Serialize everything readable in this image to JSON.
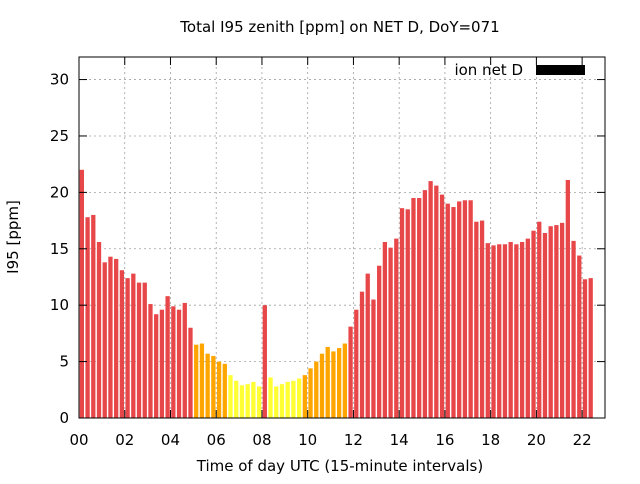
{
  "chart_data": {
    "type": "bar",
    "title": "Total I95 zenith [ppm] on NET D, DoY=071",
    "xlabel": "Time of day UTC (15-minute intervals)",
    "ylabel": "I95 [ppm]",
    "xlim": [
      0,
      23
    ],
    "ylim": [
      0,
      32
    ],
    "grid": true,
    "legend": {
      "position": "top-right",
      "entries": [
        {
          "name": "ion net D",
          "color": "#000000"
        }
      ]
    },
    "x_ticks": [
      {
        "value": 0,
        "label": "00"
      },
      {
        "value": 2,
        "label": "02"
      },
      {
        "value": 4,
        "label": "04"
      },
      {
        "value": 6,
        "label": "06"
      },
      {
        "value": 8,
        "label": "08"
      },
      {
        "value": 10,
        "label": "10"
      },
      {
        "value": 12,
        "label": "12"
      },
      {
        "value": 14,
        "label": "14"
      },
      {
        "value": 16,
        "label": "16"
      },
      {
        "value": 18,
        "label": "18"
      },
      {
        "value": 20,
        "label": "20"
      },
      {
        "value": 22,
        "label": "22"
      }
    ],
    "y_ticks": [
      {
        "value": 0,
        "label": "0"
      },
      {
        "value": 5,
        "label": "5"
      },
      {
        "value": 10,
        "label": "10"
      },
      {
        "value": 15,
        "label": "15"
      },
      {
        "value": 20,
        "label": "20"
      },
      {
        "value": 25,
        "label": "25"
      },
      {
        "value": 30,
        "label": "30"
      }
    ],
    "bar_interval_hours": 0.25,
    "colors": {
      "high": "#e8474a",
      "medium": "#ffa500",
      "low": "#ffff33"
    },
    "series": [
      {
        "values": [
          22.0,
          17.8,
          18.0,
          15.6,
          13.8,
          14.3,
          14.1,
          13.1,
          12.4,
          12.8,
          12.0,
          12.0,
          10.1,
          9.2,
          9.6,
          10.8,
          9.9,
          9.6,
          10.2,
          8.0,
          6.5,
          6.6,
          5.7,
          5.5,
          5.0,
          4.8,
          3.8,
          3.3,
          2.9,
          3.0,
          3.2,
          2.8,
          10.0,
          3.6,
          2.8,
          3.0,
          3.2,
          3.3,
          3.5,
          3.8,
          4.4,
          5.0,
          5.7,
          6.3,
          5.9,
          6.2,
          6.6,
          8.1,
          9.6,
          11.2,
          12.8,
          10.5,
          13.5,
          15.6,
          15.1,
          15.9,
          18.6,
          18.5,
          19.5,
          19.5,
          20.2,
          21.0,
          20.6,
          19.8,
          19.0,
          18.7,
          19.2,
          19.3,
          19.3,
          17.4,
          17.5,
          15.5,
          15.3,
          15.4,
          15.4,
          15.6,
          15.4,
          15.6,
          15.9,
          16.6,
          17.4,
          16.4,
          17.0,
          17.1,
          17.3,
          21.1,
          15.7,
          14.4,
          12.3,
          12.4
        ],
        "colors": [
          "high",
          "high",
          "high",
          "high",
          "high",
          "high",
          "high",
          "high",
          "high",
          "high",
          "high",
          "high",
          "high",
          "high",
          "high",
          "high",
          "high",
          "high",
          "high",
          "high",
          "medium",
          "medium",
          "medium",
          "medium",
          "medium",
          "medium",
          "low",
          "low",
          "low",
          "low",
          "low",
          "low",
          "high",
          "low",
          "low",
          "low",
          "low",
          "low",
          "low",
          "medium",
          "medium",
          "medium",
          "medium",
          "medium",
          "medium",
          "medium",
          "medium",
          "high",
          "high",
          "high",
          "high",
          "high",
          "high",
          "high",
          "high",
          "high",
          "high",
          "high",
          "high",
          "high",
          "high",
          "high",
          "high",
          "high",
          "high",
          "high",
          "high",
          "high",
          "high",
          "high",
          "high",
          "high",
          "high",
          "high",
          "high",
          "high",
          "high",
          "high",
          "high",
          "high",
          "high",
          "high",
          "high",
          "high",
          "high",
          "high",
          "high",
          "high",
          "high",
          "high"
        ]
      }
    ]
  }
}
